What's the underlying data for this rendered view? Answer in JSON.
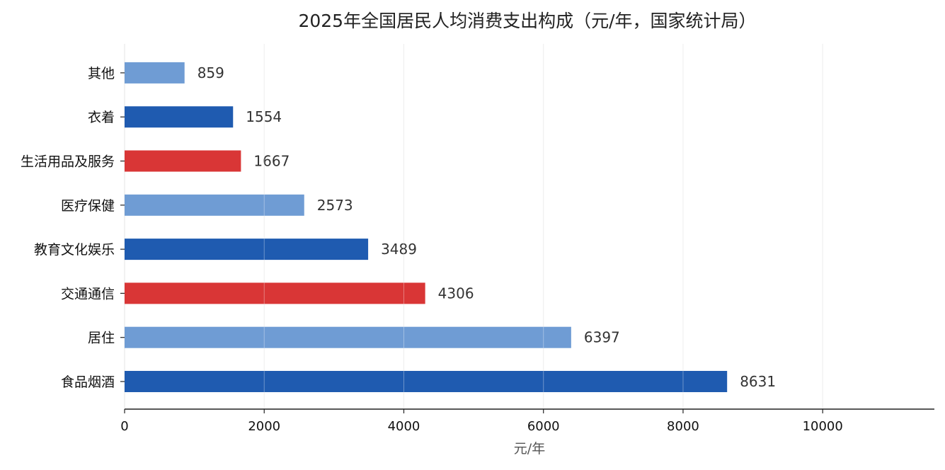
{
  "chart_data": {
    "type": "bar",
    "orientation": "horizontal",
    "title": "2025年全国居民人均消费支出构成（元/年，国家统计局）",
    "xlabel": "元/年",
    "ylabel": "",
    "xlim": [
      0,
      11600
    ],
    "xticks": [
      0,
      2000,
      4000,
      6000,
      8000,
      10000
    ],
    "categories": [
      "食品烟酒",
      "居住",
      "交通通信",
      "教育文化娱乐",
      "医疗保健",
      "生活用品及服务",
      "衣着",
      "其他"
    ],
    "values": [
      8631,
      6397,
      4306,
      3489,
      2573,
      1667,
      1554,
      859
    ],
    "bar_colors": [
      "#1f5bb0",
      "#6f9cd4",
      "#d93636",
      "#1f5bb0",
      "#6f9cd4",
      "#d93636",
      "#1f5bb0",
      "#6f9cd4"
    ],
    "grid": "vertical",
    "data_labels": true
  }
}
